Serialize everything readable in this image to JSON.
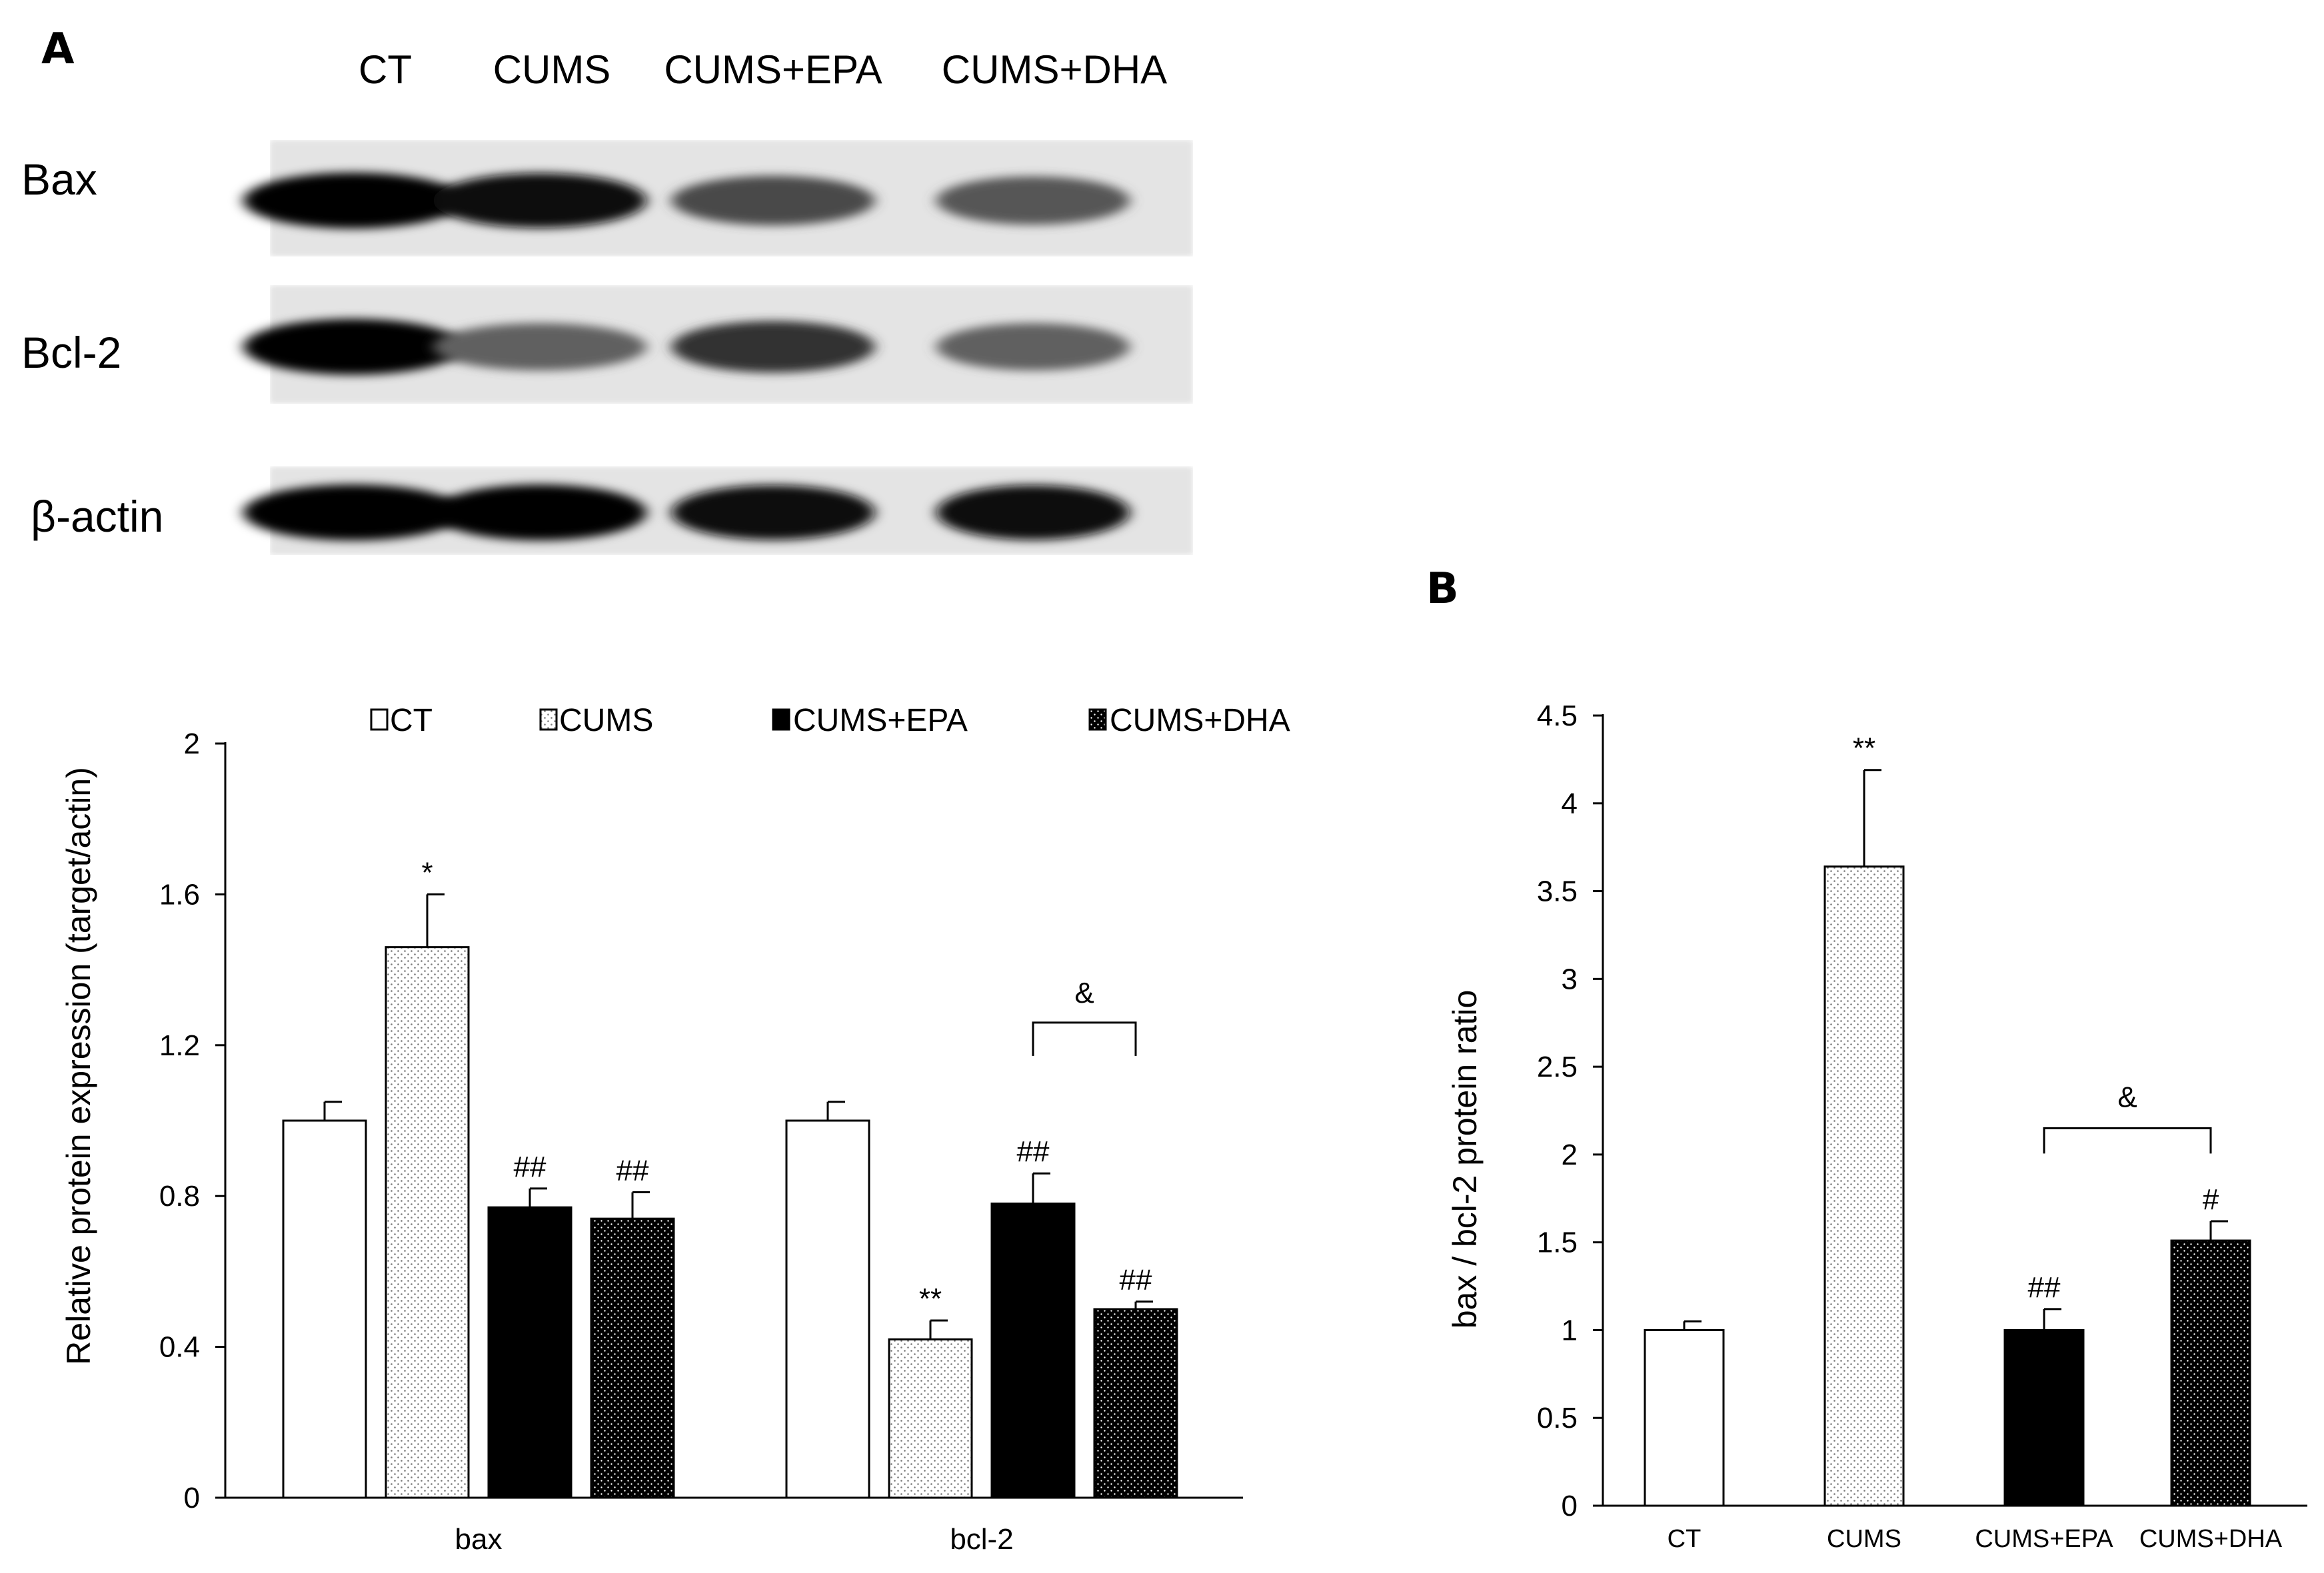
{
  "panel_a_letter": "A",
  "panel_b_letter": "B",
  "blot": {
    "lanes": [
      "CT",
      "CUMS",
      "CUMS+EPA",
      "CUMS+DHA"
    ],
    "rows": [
      {
        "label": "Bax",
        "band_intensity": [
          1.0,
          0.95,
          0.7,
          0.65
        ]
      },
      {
        "label": "Bcl-2",
        "band_intensity": [
          1.0,
          0.6,
          0.8,
          0.6
        ]
      },
      {
        "label": "β-actin",
        "band_intensity": [
          1.0,
          1.0,
          0.95,
          0.95
        ]
      }
    ]
  },
  "colors": {
    "CT": "#ffffff",
    "CUMS": "#f2f2f2",
    "CUMS+EPA": "#000000",
    "CUMS+DHA": "#111111",
    "axis": "#000000"
  },
  "chart_data": [
    {
      "type": "bar",
      "panel": "A",
      "categories": [
        "bax",
        "bcl-2"
      ],
      "series": [
        {
          "name": "CT",
          "values": [
            1.0,
            1.0
          ],
          "errors": [
            0.05,
            0.05
          ],
          "marks": [
            "",
            ""
          ],
          "pattern": "hollow"
        },
        {
          "name": "CUMS",
          "values": [
            1.46,
            0.42
          ],
          "errors": [
            0.14,
            0.05
          ],
          "marks": [
            "*",
            "**"
          ],
          "pattern": "dotted-light"
        },
        {
          "name": "CUMS+EPA",
          "values": [
            0.77,
            0.78
          ],
          "errors": [
            0.05,
            0.08
          ],
          "marks": [
            "##",
            "##"
          ],
          "pattern": "solid-black"
        },
        {
          "name": "CUMS+DHA",
          "values": [
            0.74,
            0.5
          ],
          "errors": [
            0.07,
            0.02
          ],
          "marks": [
            "##",
            "##"
          ],
          "pattern": "dotted-dark"
        }
      ],
      "ylabel": "Relative protein expression (target/actin)",
      "ylim": [
        0,
        2
      ],
      "yticks": [
        "0",
        "0.4",
        "0.8",
        "1.2",
        "1.6",
        "2"
      ],
      "ytick_values": [
        0,
        0.4,
        0.8,
        1.2,
        1.6,
        2
      ],
      "legend_position": "top",
      "grid": false,
      "bracket": {
        "category": "bcl-2",
        "between": [
          "CUMS+EPA",
          "CUMS+DHA"
        ],
        "label": "&",
        "at": 1.26
      }
    },
    {
      "type": "bar",
      "panel": "B",
      "categories": [
        "CT",
        "CUMS",
        "CUMS+EPA",
        "CUMS+DHA"
      ],
      "values": [
        1.0,
        3.64,
        1.0,
        1.51
      ],
      "errors": [
        0.05,
        0.55,
        0.12,
        0.11
      ],
      "marks": [
        "",
        "**",
        "##",
        "#"
      ],
      "patterns": [
        "hollow",
        "dotted-light",
        "solid-black",
        "dotted-dark"
      ],
      "ylabel": "bax / bcl-2 protein ratio",
      "ylim": [
        0,
        4.5
      ],
      "yticks": [
        "0",
        "0.5",
        "1",
        "1.5",
        "2",
        "2.5",
        "3",
        "3.5",
        "4",
        "4.5"
      ],
      "ytick_values": [
        0,
        0.5,
        1,
        1.5,
        2,
        2.5,
        3,
        3.5,
        4,
        4.5
      ],
      "grid": false,
      "bracket": {
        "between": [
          "CUMS+EPA",
          "CUMS+DHA"
        ],
        "label": "&",
        "at": 2.15
      }
    }
  ]
}
